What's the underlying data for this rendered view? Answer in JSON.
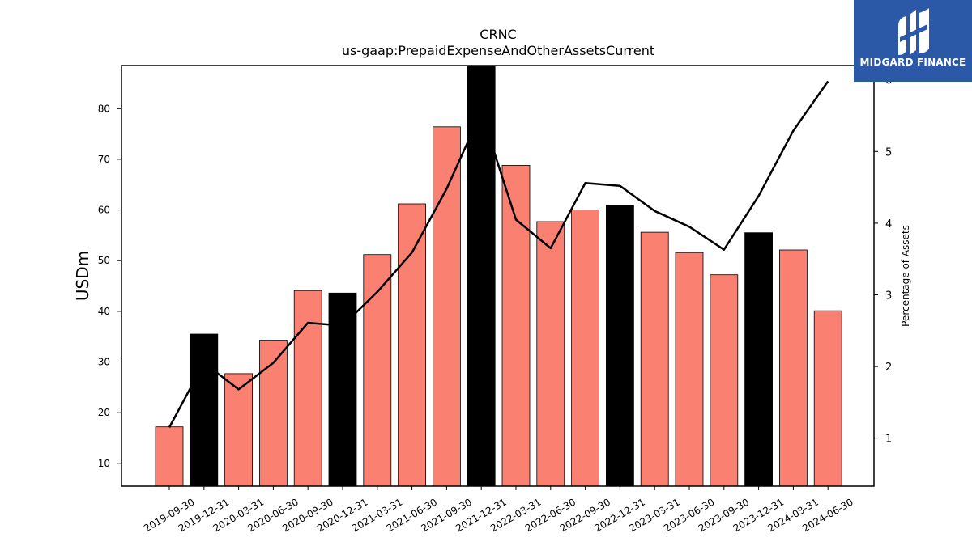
{
  "chart_data": {
    "type": "bar+line",
    "title": "CRNC",
    "subtitle": "us-gaap:PrepaidExpenseAndOtherAssetsCurrent",
    "ylabel": "USDm",
    "y2label": "Percentage of Assets",
    "ylim": [
      5.5,
      88.5
    ],
    "y2lim": [
      0.33,
      6.2
    ],
    "yticks": [
      10,
      20,
      30,
      40,
      50,
      60,
      70,
      80
    ],
    "y2ticks": [
      1,
      2,
      3,
      4,
      5,
      6
    ],
    "categories": [
      "2019-09-30",
      "2019-12-31",
      "2020-03-31",
      "2020-06-30",
      "2020-09-30",
      "2020-12-31",
      "2021-03-31",
      "2021-06-30",
      "2021-09-30",
      "2021-12-31",
      "2022-03-31",
      "2022-06-30",
      "2022-09-30",
      "2022-12-31",
      "2023-03-31",
      "2023-06-30",
      "2023-09-30",
      "2023-12-31",
      "2024-03-31",
      "2024-06-30"
    ],
    "series": [
      {
        "kind": "bar",
        "values": [
          17.2,
          35.5,
          27.7,
          34.3,
          44.1,
          43.6,
          51.2,
          61.2,
          76.4,
          88.5,
          68.8,
          57.7,
          60.0,
          60.9,
          55.6,
          51.6,
          47.2,
          55.5,
          52.1,
          40.1
        ],
        "highlight": [
          false,
          true,
          false,
          false,
          false,
          true,
          false,
          false,
          false,
          true,
          false,
          false,
          false,
          true,
          false,
          false,
          false,
          true,
          false,
          false
        ]
      },
      {
        "kind": "line",
        "axis": "right",
        "values": [
          1.15,
          2.05,
          1.68,
          2.05,
          2.61,
          2.57,
          3.04,
          3.59,
          4.48,
          5.55,
          4.05,
          3.65,
          4.56,
          4.52,
          4.17,
          3.95,
          3.63,
          4.38,
          5.29,
          5.98
        ]
      }
    ],
    "colors": {
      "bar": "#fa8072",
      "bar_highlight": "#000000",
      "line": "#000000"
    },
    "grid": false
  },
  "logo": {
    "text": "MIDGARD FINANCE",
    "background": "#2b59a8"
  }
}
